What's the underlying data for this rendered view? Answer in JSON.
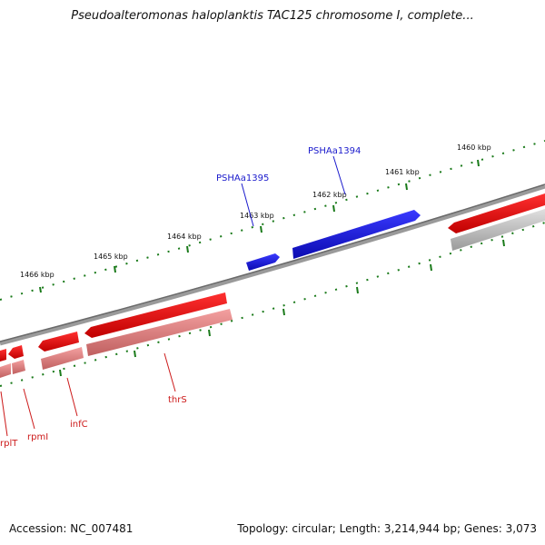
{
  "header": {
    "title": "Pseudoalteromonas haloplanktis TAC125 chromosome I, complete..."
  },
  "footer": {
    "accession": "Accession: NC_007481",
    "summary": "Topology: circular; Length: 3,214,944 bp; Genes: 3,073"
  },
  "ruler": {
    "labels": [
      "1466 kbp",
      "1465 kbp",
      "1464 kbp",
      "1463 kbp",
      "1462 kbp",
      "1461 kbp",
      "1460 kbp"
    ]
  },
  "genes": {
    "forward": [
      "PSHAa1395",
      "PSHAa1394"
    ],
    "reverse": [
      "rplT",
      "rpmI",
      "infC",
      "thrS"
    ]
  },
  "colors": {
    "forward_gene": "#1414e6",
    "reverse_gene": "#e61414",
    "reverse_cds": "#f08080",
    "backbone": "#7a7a7a",
    "tick": "#1a7a1a",
    "forward_label": "#1a1acc",
    "reverse_label": "#cc1a1a"
  }
}
